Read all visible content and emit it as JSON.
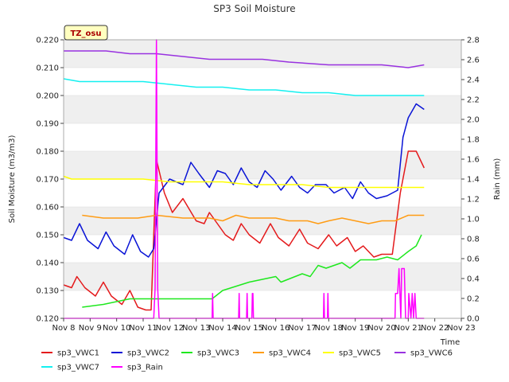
{
  "chart_data": {
    "type": "line",
    "title": "SP3 Soil Moisture",
    "ylabel": "Soil Moisture (m3/m3)",
    "y2label": "Rain (mm)",
    "xlabel": "Time",
    "badge": "TZ_osu",
    "x_ticks": [
      "Nov 8",
      "Nov 9",
      "Nov 10",
      "Nov 11",
      "Nov 12",
      "Nov 13",
      "Nov 14",
      "Nov 15",
      "Nov 16",
      "Nov 17",
      "Nov 18",
      "Nov 19",
      "Nov 20",
      "Nov 21",
      "Nov 22",
      "Nov 23"
    ],
    "xlim": [
      0,
      15
    ],
    "ylim": [
      0.12,
      0.22
    ],
    "y_ticks": [
      "0.120",
      "0.130",
      "0.140",
      "0.150",
      "0.160",
      "0.170",
      "0.180",
      "0.190",
      "0.200",
      "0.210",
      "0.220"
    ],
    "y2lim": [
      0.0,
      2.8
    ],
    "y2_ticks": [
      "0.0",
      "0.2",
      "0.4",
      "0.6",
      "0.8",
      "1.0",
      "1.2",
      "1.4",
      "1.6",
      "1.8",
      "2.0",
      "2.2",
      "2.4",
      "2.6",
      "2.8"
    ],
    "grid": "horizontal bands",
    "legend_position": "bottom",
    "series": [
      {
        "name": "sp3_VWC1",
        "color": "#e41a1c",
        "axis": "left",
        "points": [
          [
            0,
            0.132
          ],
          [
            0.3,
            0.131
          ],
          [
            0.5,
            0.135
          ],
          [
            0.8,
            0.131
          ],
          [
            1.2,
            0.128
          ],
          [
            1.5,
            0.133
          ],
          [
            1.8,
            0.128
          ],
          [
            2.2,
            0.125
          ],
          [
            2.5,
            0.13
          ],
          [
            2.8,
            0.124
          ],
          [
            3.1,
            0.123
          ],
          [
            3.3,
            0.123
          ],
          [
            3.5,
            0.177
          ],
          [
            3.8,
            0.165
          ],
          [
            4.1,
            0.158
          ],
          [
            4.5,
            0.163
          ],
          [
            5.0,
            0.155
          ],
          [
            5.3,
            0.154
          ],
          [
            5.5,
            0.158
          ],
          [
            5.8,
            0.154
          ],
          [
            6.1,
            0.15
          ],
          [
            6.4,
            0.148
          ],
          [
            6.7,
            0.154
          ],
          [
            7.0,
            0.15
          ],
          [
            7.4,
            0.147
          ],
          [
            7.8,
            0.154
          ],
          [
            8.1,
            0.149
          ],
          [
            8.5,
            0.146
          ],
          [
            8.9,
            0.152
          ],
          [
            9.2,
            0.147
          ],
          [
            9.6,
            0.145
          ],
          [
            10.0,
            0.15
          ],
          [
            10.3,
            0.146
          ],
          [
            10.7,
            0.149
          ],
          [
            11.0,
            0.144
          ],
          [
            11.3,
            0.146
          ],
          [
            11.7,
            0.142
          ],
          [
            12.0,
            0.143
          ],
          [
            12.4,
            0.143
          ],
          [
            12.7,
            0.165
          ],
          [
            13.0,
            0.18
          ],
          [
            13.3,
            0.18
          ],
          [
            13.6,
            0.174
          ]
        ]
      },
      {
        "name": "sp3_VWC2",
        "color": "#0a14d6",
        "axis": "left",
        "points": [
          [
            0,
            0.149
          ],
          [
            0.3,
            0.148
          ],
          [
            0.6,
            0.154
          ],
          [
            0.9,
            0.148
          ],
          [
            1.3,
            0.145
          ],
          [
            1.6,
            0.151
          ],
          [
            1.9,
            0.146
          ],
          [
            2.3,
            0.143
          ],
          [
            2.6,
            0.15
          ],
          [
            2.9,
            0.144
          ],
          [
            3.2,
            0.142
          ],
          [
            3.4,
            0.145
          ],
          [
            3.6,
            0.165
          ],
          [
            4.0,
            0.17
          ],
          [
            4.5,
            0.168
          ],
          [
            4.8,
            0.176
          ],
          [
            5.1,
            0.172
          ],
          [
            5.5,
            0.167
          ],
          [
            5.8,
            0.173
          ],
          [
            6.1,
            0.172
          ],
          [
            6.4,
            0.168
          ],
          [
            6.7,
            0.174
          ],
          [
            7.0,
            0.169
          ],
          [
            7.3,
            0.167
          ],
          [
            7.6,
            0.173
          ],
          [
            7.9,
            0.17
          ],
          [
            8.2,
            0.166
          ],
          [
            8.6,
            0.171
          ],
          [
            8.9,
            0.167
          ],
          [
            9.2,
            0.165
          ],
          [
            9.5,
            0.168
          ],
          [
            9.9,
            0.168
          ],
          [
            10.2,
            0.165
          ],
          [
            10.6,
            0.167
          ],
          [
            10.9,
            0.163
          ],
          [
            11.2,
            0.169
          ],
          [
            11.5,
            0.165
          ],
          [
            11.8,
            0.163
          ],
          [
            12.2,
            0.164
          ],
          [
            12.6,
            0.166
          ],
          [
            12.8,
            0.185
          ],
          [
            13.0,
            0.192
          ],
          [
            13.3,
            0.197
          ],
          [
            13.6,
            0.195
          ]
        ]
      },
      {
        "name": "sp3_VWC3",
        "color": "#1ee81e",
        "axis": "left",
        "points": [
          [
            0.7,
            0.124
          ],
          [
            1.5,
            0.125
          ],
          [
            2.5,
            0.127
          ],
          [
            3.5,
            0.127
          ],
          [
            5.6,
            0.127
          ],
          [
            6.0,
            0.13
          ],
          [
            7.0,
            0.133
          ],
          [
            8.0,
            0.135
          ],
          [
            8.2,
            0.133
          ],
          [
            9.0,
            0.136
          ],
          [
            9.3,
            0.135
          ],
          [
            9.6,
            0.139
          ],
          [
            9.9,
            0.138
          ],
          [
            10.5,
            0.14
          ],
          [
            10.8,
            0.138
          ],
          [
            11.2,
            0.141
          ],
          [
            11.8,
            0.141
          ],
          [
            12.2,
            0.142
          ],
          [
            12.6,
            0.141
          ],
          [
            13.0,
            0.144
          ],
          [
            13.3,
            0.146
          ],
          [
            13.5,
            0.15
          ]
        ]
      },
      {
        "name": "sp3_VWC4",
        "color": "#ff9c14",
        "axis": "left",
        "points": [
          [
            0.7,
            0.157
          ],
          [
            1.5,
            0.156
          ],
          [
            2.8,
            0.156
          ],
          [
            3.5,
            0.157
          ],
          [
            4.5,
            0.156
          ],
          [
            5.5,
            0.156
          ],
          [
            6.0,
            0.155
          ],
          [
            6.5,
            0.157
          ],
          [
            7.0,
            0.156
          ],
          [
            8.0,
            0.156
          ],
          [
            8.5,
            0.155
          ],
          [
            9.2,
            0.155
          ],
          [
            9.6,
            0.154
          ],
          [
            10.0,
            0.155
          ],
          [
            10.5,
            0.156
          ],
          [
            11.0,
            0.155
          ],
          [
            11.5,
            0.154
          ],
          [
            12.0,
            0.155
          ],
          [
            12.5,
            0.155
          ],
          [
            13.0,
            0.157
          ],
          [
            13.6,
            0.157
          ]
        ]
      },
      {
        "name": "sp3_VWC5",
        "color": "#ffff00",
        "axis": "left",
        "points": [
          [
            0,
            0.171
          ],
          [
            0.3,
            0.17
          ],
          [
            1.0,
            0.17
          ],
          [
            2.0,
            0.17
          ],
          [
            3.0,
            0.17
          ],
          [
            4.0,
            0.169
          ],
          [
            5.0,
            0.169
          ],
          [
            6.0,
            0.169
          ],
          [
            7.0,
            0.168
          ],
          [
            8.0,
            0.168
          ],
          [
            9.0,
            0.168
          ],
          [
            10.0,
            0.167
          ],
          [
            11.0,
            0.167
          ],
          [
            12.0,
            0.167
          ],
          [
            13.0,
            0.167
          ],
          [
            13.6,
            0.167
          ]
        ]
      },
      {
        "name": "sp3_VWC6",
        "color": "#9932e0",
        "axis": "left",
        "points": [
          [
            0,
            0.216
          ],
          [
            1.6,
            0.216
          ],
          [
            2.5,
            0.215
          ],
          [
            3.5,
            0.215
          ],
          [
            4.5,
            0.214
          ],
          [
            5.5,
            0.213
          ],
          [
            7.5,
            0.213
          ],
          [
            8.5,
            0.212
          ],
          [
            10.0,
            0.211
          ],
          [
            11.0,
            0.211
          ],
          [
            12.0,
            0.211
          ],
          [
            13.0,
            0.21
          ],
          [
            13.6,
            0.211
          ]
        ]
      },
      {
        "name": "sp3_VWC7",
        "color": "#14f0f0",
        "axis": "left",
        "points": [
          [
            0,
            0.206
          ],
          [
            0.6,
            0.205
          ],
          [
            2.0,
            0.205
          ],
          [
            3.0,
            0.205
          ],
          [
            4.0,
            0.204
          ],
          [
            5.0,
            0.203
          ],
          [
            6.0,
            0.203
          ],
          [
            7.0,
            0.202
          ],
          [
            8.0,
            0.202
          ],
          [
            9.0,
            0.201
          ],
          [
            10.0,
            0.201
          ],
          [
            11.0,
            0.2
          ],
          [
            12.0,
            0.2
          ],
          [
            13.0,
            0.2
          ],
          [
            13.6,
            0.2
          ]
        ]
      },
      {
        "name": "sp3_Rain",
        "color": "#ff00ff",
        "axis": "right",
        "points": [
          [
            0,
            0
          ],
          [
            3.4,
            0
          ],
          [
            3.45,
            0.3
          ],
          [
            3.5,
            2.8
          ],
          [
            3.55,
            0.3
          ],
          [
            3.6,
            0
          ],
          [
            5.6,
            0
          ],
          [
            5.62,
            0.25
          ],
          [
            5.64,
            0
          ],
          [
            6.6,
            0
          ],
          [
            6.62,
            0.25
          ],
          [
            6.64,
            0
          ],
          [
            6.9,
            0
          ],
          [
            6.92,
            0.25
          ],
          [
            6.94,
            0
          ],
          [
            7.1,
            0
          ],
          [
            7.12,
            0.25
          ],
          [
            7.14,
            0.25
          ],
          [
            7.16,
            0
          ],
          [
            9.8,
            0
          ],
          [
            9.82,
            0.25
          ],
          [
            9.84,
            0
          ],
          [
            9.95,
            0
          ],
          [
            9.97,
            0.25
          ],
          [
            9.99,
            0
          ],
          [
            12.5,
            0
          ],
          [
            12.52,
            0.25
          ],
          [
            12.6,
            0.25
          ],
          [
            12.65,
            0.5
          ],
          [
            12.72,
            0
          ],
          [
            12.75,
            0.5
          ],
          [
            12.85,
            0.5
          ],
          [
            12.9,
            0
          ],
          [
            13.0,
            0
          ],
          [
            13.02,
            0.25
          ],
          [
            13.1,
            0
          ],
          [
            13.15,
            0.25
          ],
          [
            13.2,
            0
          ],
          [
            13.25,
            0.25
          ],
          [
            13.3,
            0
          ],
          [
            13.5,
            0
          ],
          [
            13.6,
            0
          ]
        ]
      }
    ]
  }
}
